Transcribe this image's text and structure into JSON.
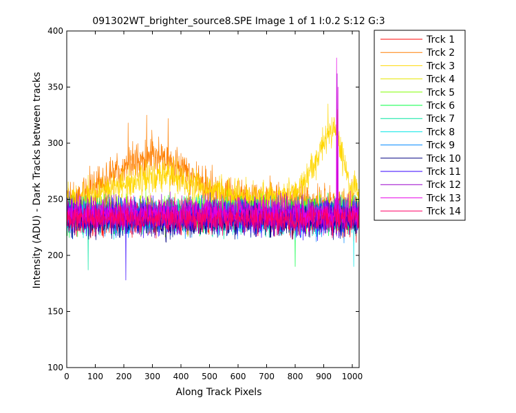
{
  "chart_data": {
    "type": "line",
    "title": "091302WT_brighter_source8.SPE  Image 1 of 1  I:0.2  S:12  G:3",
    "xlabel": "Along Track Pixels",
    "ylabel": "Intensity (ADU) - Dark Tracks between tracks",
    "xlim": [
      0,
      1024
    ],
    "ylim": [
      100,
      400
    ],
    "xticks": [
      0,
      100,
      200,
      300,
      400,
      500,
      600,
      700,
      800,
      900,
      1000
    ],
    "yticks": [
      100,
      150,
      200,
      250,
      300,
      350,
      400
    ],
    "legend_position": "outside-right",
    "grid": false,
    "series": [
      {
        "name": "Trck 1",
        "color": "#ff0000",
        "baseline": [
          [
            0,
            235
          ],
          [
            1024,
            235
          ]
        ],
        "noise": 16,
        "spikes": [],
        "seed": 1
      },
      {
        "name": "Trck 2",
        "color": "#ff7f00",
        "baseline": [
          [
            0,
            250
          ],
          [
            100,
            262
          ],
          [
            200,
            280
          ],
          [
            300,
            290
          ],
          [
            380,
            280
          ],
          [
            460,
            265
          ],
          [
            520,
            258
          ],
          [
            600,
            252
          ],
          [
            800,
            248
          ],
          [
            1024,
            245
          ]
        ],
        "noise": 17,
        "spikes": [
          [
            280,
            325
          ],
          [
            355,
            322
          ],
          [
            215,
            318
          ]
        ],
        "seed": 2
      },
      {
        "name": "Trck 3",
        "color": "#ffd700",
        "baseline": [
          [
            0,
            248
          ],
          [
            100,
            252
          ],
          [
            250,
            268
          ],
          [
            350,
            272
          ],
          [
            450,
            262
          ],
          [
            550,
            255
          ],
          [
            700,
            250
          ],
          [
            800,
            255
          ],
          [
            860,
            275
          ],
          [
            900,
            300
          ],
          [
            940,
            312
          ],
          [
            965,
            290
          ],
          [
            990,
            262
          ],
          [
            1024,
            255
          ]
        ],
        "noise": 14,
        "spikes": [
          [
            915,
            335
          ],
          [
            948,
            330
          ]
        ],
        "seed": 3
      },
      {
        "name": "Trck 4",
        "color": "#e6e600",
        "baseline": [
          [
            0,
            240
          ],
          [
            1024,
            240
          ]
        ],
        "noise": 14,
        "spikes": [],
        "seed": 4
      },
      {
        "name": "Trck 5",
        "color": "#80ff00",
        "baseline": [
          [
            0,
            238
          ],
          [
            1024,
            238
          ]
        ],
        "noise": 15,
        "spikes": [],
        "seed": 5
      },
      {
        "name": "Trck 6",
        "color": "#00ff40",
        "baseline": [
          [
            0,
            236
          ],
          [
            1024,
            236
          ]
        ],
        "noise": 15,
        "spikes": [
          [
            800,
            190
          ]
        ],
        "seed": 6
      },
      {
        "name": "Trck 7",
        "color": "#00e5a0",
        "baseline": [
          [
            0,
            235
          ],
          [
            1024,
            235
          ]
        ],
        "noise": 15,
        "spikes": [
          [
            75,
            187
          ]
        ],
        "seed": 7
      },
      {
        "name": "Trck 8",
        "color": "#00e5e5",
        "baseline": [
          [
            0,
            234
          ],
          [
            1024,
            234
          ]
        ],
        "noise": 15,
        "spikes": [
          [
            1005,
            190
          ]
        ],
        "seed": 8
      },
      {
        "name": "Trck 9",
        "color": "#0088ff",
        "baseline": [
          [
            0,
            233
          ],
          [
            1024,
            233
          ]
        ],
        "noise": 15,
        "spikes": [],
        "seed": 9
      },
      {
        "name": "Trck 10",
        "color": "#000080",
        "baseline": [
          [
            0,
            232
          ],
          [
            1024,
            232
          ]
        ],
        "noise": 15,
        "spikes": [],
        "seed": 10
      },
      {
        "name": "Trck 11",
        "color": "#3300ff",
        "baseline": [
          [
            0,
            234
          ],
          [
            1024,
            234
          ]
        ],
        "noise": 15,
        "spikes": [
          [
            207,
            178
          ]
        ],
        "seed": 11
      },
      {
        "name": "Trck 12",
        "color": "#9900cc",
        "baseline": [
          [
            0,
            236
          ],
          [
            1024,
            236
          ]
        ],
        "noise": 15,
        "spikes": [
          [
            947,
            362
          ]
        ],
        "seed": 12
      },
      {
        "name": "Trck 13",
        "color": "#e600e6",
        "baseline": [
          [
            0,
            238
          ],
          [
            1024,
            238
          ]
        ],
        "noise": 15,
        "spikes": [
          [
            945,
            376
          ],
          [
            950,
            350
          ]
        ],
        "seed": 13
      },
      {
        "name": "Trck 14",
        "color": "#ff0066",
        "baseline": [
          [
            0,
            232
          ],
          [
            1024,
            232
          ]
        ],
        "noise": 12,
        "spikes": [],
        "seed": 14
      }
    ]
  }
}
